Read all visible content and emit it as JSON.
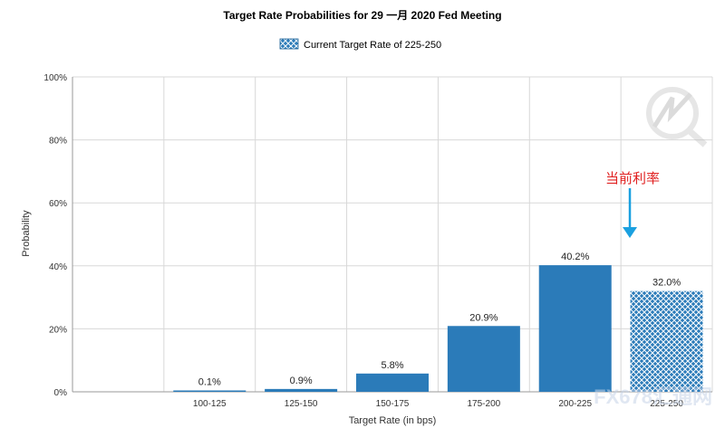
{
  "colors": {
    "bar": "#2b7bb9",
    "hatch_bg": "#2b7bb9",
    "hatch_line": "#ffffff",
    "annotation": "#e02020",
    "arrow": "#1aa0e0"
  },
  "watermark": {
    "text": "FX678汇通网"
  },
  "chart_data": {
    "type": "bar",
    "title": "Target Rate Probabilities for 29 一月 2020 Fed Meeting",
    "legend": {
      "label": "Current Target Rate of 225-250",
      "placement": "top-center"
    },
    "xlabel": "Target Rate (in bps)",
    "ylabel": "Probability",
    "ylim": [
      0,
      100
    ],
    "yticks": [
      0,
      20,
      40,
      60,
      80,
      100
    ],
    "ytick_labels": [
      "0%",
      "20%",
      "40%",
      "60%",
      "80%",
      "100%"
    ],
    "categories": [
      "100-125",
      "125-150",
      "150-175",
      "175-200",
      "200-225",
      "225-250"
    ],
    "values": [
      0.1,
      0.9,
      5.8,
      20.9,
      40.2,
      32.0
    ],
    "value_labels": [
      "0.1%",
      "0.9%",
      "5.8%",
      "20.9%",
      "40.2%",
      "32.0%"
    ],
    "highlight_category": "225-250",
    "grid": true,
    "annotation": {
      "text": "当前利率",
      "target": "225-250"
    }
  }
}
